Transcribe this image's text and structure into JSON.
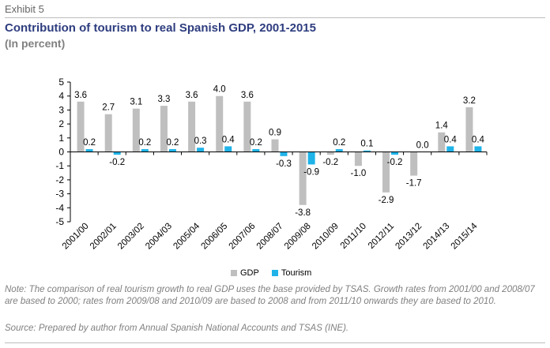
{
  "header": {
    "exhibit": "Exhibit 5",
    "title": "Contribution of tourism to real Spanish GDP, 2001-2015",
    "subtitle": "(In percent)"
  },
  "colors": {
    "gdp": "#bfbfbf",
    "tourism": "#1fb3e8"
  },
  "chart_data": {
    "type": "bar",
    "categories": [
      "2001/00",
      "2002/01",
      "2003/02",
      "2004/03",
      "2005/04",
      "2006/05",
      "2007/06",
      "2008/07",
      "2009/08",
      "2010/09",
      "2011/10",
      "2012/11",
      "2013/12",
      "2014/13",
      "2015/14"
    ],
    "series": [
      {
        "name": "GDP",
        "values": [
          3.6,
          2.7,
          3.1,
          3.3,
          3.6,
          4.0,
          3.6,
          0.9,
          -3.8,
          -0.2,
          -1.0,
          -2.9,
          -1.7,
          1.4,
          3.2
        ]
      },
      {
        "name": "Tourism",
        "values": [
          0.2,
          -0.2,
          0.2,
          0.2,
          0.3,
          0.4,
          0.2,
          -0.3,
          -0.9,
          0.2,
          0.1,
          -0.2,
          0.0,
          0.4,
          0.4
        ]
      }
    ],
    "ylim": [
      -5,
      5
    ],
    "yticks": [
      5,
      4,
      3,
      2,
      1,
      0,
      -1,
      -2,
      -3,
      -4,
      -5
    ],
    "labels": [
      {
        "text": "3.6",
        "value": 3.6,
        "category": 0,
        "series": 0
      },
      {
        "text": "0.2",
        "value": 0.2,
        "category": 0,
        "series": 1
      },
      {
        "text": "2.7",
        "value": 2.7,
        "category": 1,
        "series": 0
      },
      {
        "text": "-0.2",
        "value": -0.2,
        "category": 1,
        "series": 1
      },
      {
        "text": "3.1",
        "value": 3.1,
        "category": 2,
        "series": 0
      },
      {
        "text": "0.2",
        "value": 0.2,
        "category": 2,
        "series": 1
      },
      {
        "text": "3.3",
        "value": 3.3,
        "category": 3,
        "series": 0
      },
      {
        "text": "0.2",
        "value": 0.2,
        "category": 3,
        "series": 1
      },
      {
        "text": "3.6",
        "value": 3.6,
        "category": 4,
        "series": 0
      },
      {
        "text": "0.3",
        "value": 0.3,
        "category": 4,
        "series": 1
      },
      {
        "text": "4.0",
        "value": 4.0,
        "category": 5,
        "series": 0
      },
      {
        "text": "0.4",
        "value": 0.4,
        "category": 5,
        "series": 1
      },
      {
        "text": "3.6",
        "value": 3.6,
        "category": 6,
        "series": 0
      },
      {
        "text": "0.2",
        "value": 0.2,
        "category": 6,
        "series": 1
      },
      {
        "text": "0.9",
        "value": 0.9,
        "category": 7,
        "series": 0
      },
      {
        "text": "-0.3",
        "value": -0.3,
        "category": 7,
        "series": 1
      },
      {
        "text": "-3.8",
        "value": -3.8,
        "category": 8,
        "series": 0
      },
      {
        "text": "-0.9",
        "value": -0.9,
        "category": 8,
        "series": 1
      },
      {
        "text": "-0.2",
        "value": -0.2,
        "category": 9,
        "series": 0
      },
      {
        "text": "0.2",
        "value": 0.2,
        "category": 9,
        "series": 1
      },
      {
        "text": "-1.0",
        "value": -1.0,
        "category": 10,
        "series": 0
      },
      {
        "text": "0.1",
        "value": 0.1,
        "category": 10,
        "series": 1
      },
      {
        "text": "-2.9",
        "value": -2.9,
        "category": 11,
        "series": 0
      },
      {
        "text": "-0.2",
        "value": -0.2,
        "category": 11,
        "series": 1
      },
      {
        "text": "-1.7",
        "value": -1.7,
        "category": 12,
        "series": 0
      },
      {
        "text": "0.0",
        "value": 0.0,
        "category": 12,
        "series": 1
      },
      {
        "text": "1.4",
        "value": 1.4,
        "category": 13,
        "series": 0
      },
      {
        "text": "0.4",
        "value": 0.4,
        "category": 13,
        "series": 1
      },
      {
        "text": "3.2",
        "value": 3.2,
        "category": 14,
        "series": 0
      },
      {
        "text": "0.4",
        "value": 0.4,
        "category": 14,
        "series": 1
      }
    ],
    "legend": {
      "position": "bottom",
      "entries": [
        "GDP",
        "Tourism"
      ]
    },
    "grid": false
  },
  "footer": {
    "note": "Note: The comparison of real tourism growth to real GDP uses the base provided by TSAS. Growth rates from 2001/00 and 2008/07 are based to 2000; rates from 2009/08 and 2010/09 are based to 2008 and from 2011/10 onwards they are based to 2010.",
    "source": "Source: Prepared by author from Annual Spanish National Accounts and TSAS (INE)."
  }
}
